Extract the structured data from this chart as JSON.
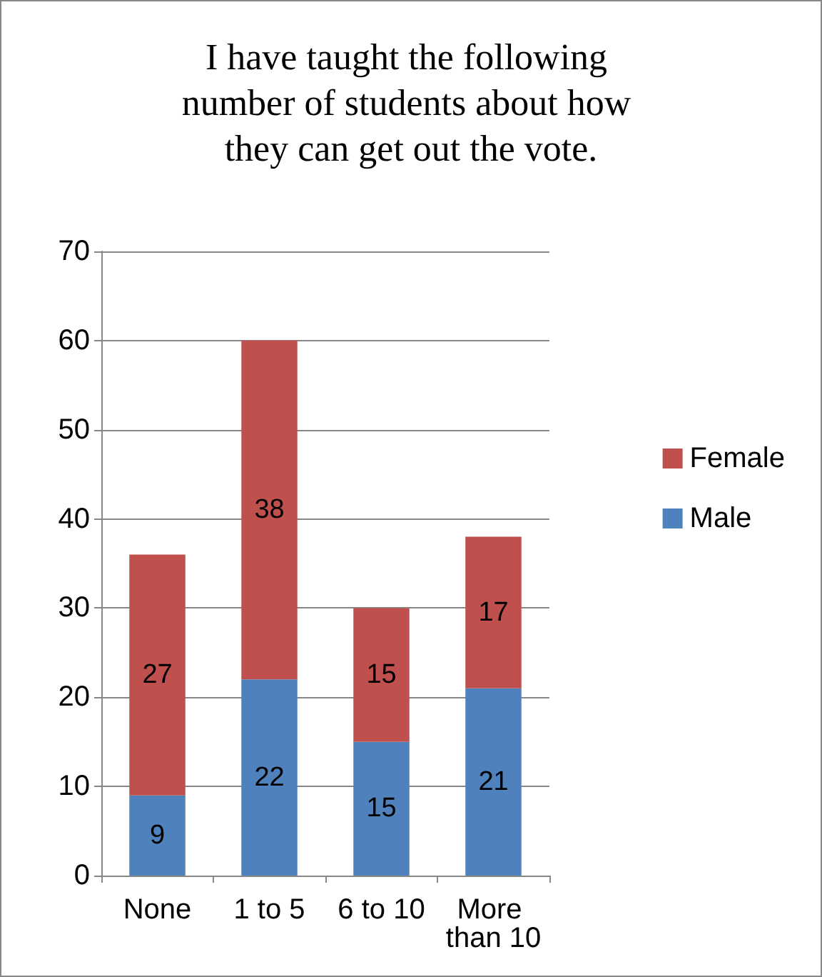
{
  "chart_data": {
    "type": "bar",
    "title": "I have taught the following number of students about how they can get out the vote.",
    "categories": [
      "None",
      "1 to 5",
      "6 to 10",
      "More than 10"
    ],
    "series": [
      {
        "name": "Male",
        "color": "#4f81bd",
        "values": [
          9,
          22,
          15,
          21
        ]
      },
      {
        "name": "Female",
        "color": "#c0504d",
        "values": [
          27,
          38,
          15,
          17
        ]
      }
    ],
    "stacked": true,
    "data_labels": true,
    "ylim": [
      0,
      70
    ],
    "yticks": [
      0,
      10,
      20,
      30,
      40,
      50,
      60,
      70
    ],
    "grid": "y",
    "legend": "right"
  }
}
